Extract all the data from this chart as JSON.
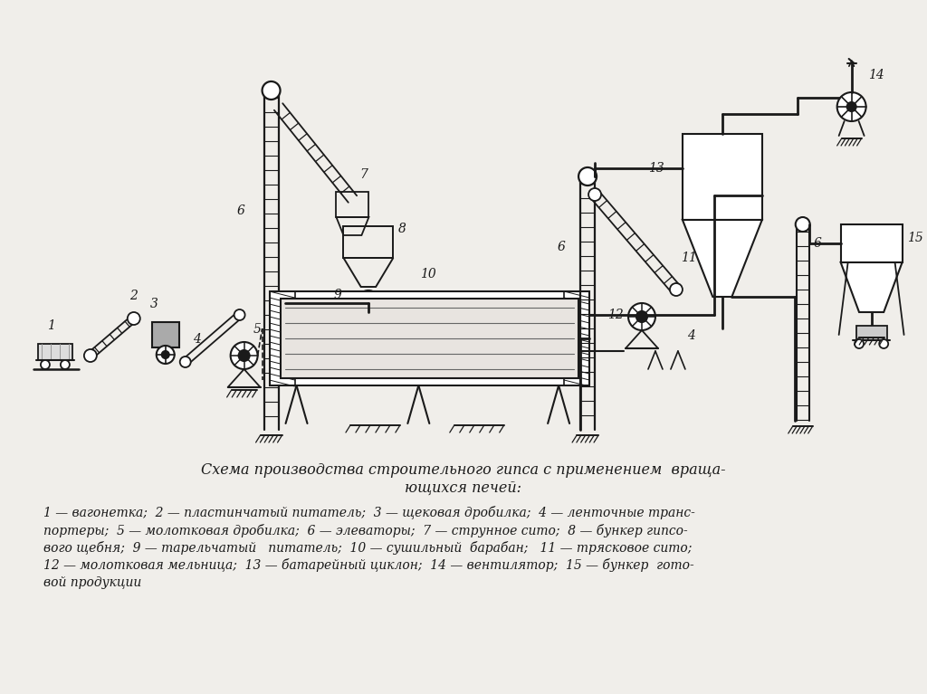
{
  "bg_color": "#f0eeea",
  "line_color": "#1a1a1a",
  "text_color": "#1a1a1a",
  "title_line1": "Схема производства строительного гипса с применением  враща-",
  "title_line2": "ющихся печей:",
  "legend_line1": "1 — вагонетка;  2 — пластинчатый питатель;  3 — щековая дробилка;  4 — ленточные транс-",
  "legend_line2": "портеры;  5 — молотковая дробилка;  6 — элеваторы;  7 — струнное сито;  8 — бункер гипсо-",
  "legend_line3": "вого щебня;  9 — тарельчатый   питатель;  10 — сушильный  барабан;   11 — трясковое сито;",
  "legend_line4": "12 — молотковая мельница;  13 — батарейный циклон;  14 — вентилятор;  15 — бункер  гото-",
  "legend_line5": "вой продукции"
}
